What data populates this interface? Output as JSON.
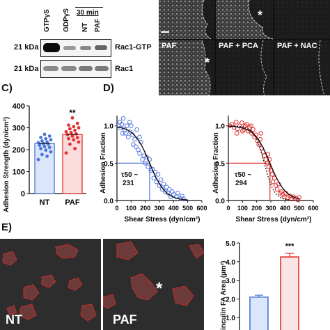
{
  "panelB": {
    "lane_labels": [
      "GTPγS",
      "GDPγS",
      "NT",
      "PAF"
    ],
    "treatment_header": "30 min",
    "rows": [
      {
        "kda": "21 kDa",
        "name": "Rac1-GTP"
      },
      {
        "kda": "21 kDa",
        "name": "Rac1"
      }
    ]
  },
  "micro_top": {
    "panels": [
      "PAF",
      "PAF + PCA",
      "PAF + NAC"
    ],
    "asterisk": "*"
  },
  "panelC": {
    "label": "C)",
    "ylabel": "Adhesion Strength (dyn/cm²)",
    "significance": "**"
  },
  "panelD": {
    "label": "D)",
    "ylabel": "Adhesion Fraction",
    "xlabel": "Shear Stress (dyn/cm²)",
    "left_tau": "τ50 ~",
    "left_tau_val": "231",
    "right_tau": "τ50 ~",
    "right_tau_val": "294"
  },
  "panelE": {
    "label": "E)",
    "images": [
      "NT",
      "PAF"
    ],
    "asterisk": "*",
    "bar_ylabel": "inculin FA Area (µm²)",
    "significance": "***"
  },
  "chart_data": [
    {
      "type": "bar",
      "categories": [
        "NT",
        "PAF"
      ],
      "values": [
        228,
        270
      ],
      "ylim": [
        0,
        400
      ],
      "yticks": [
        0,
        100,
        200,
        300,
        400
      ],
      "colors": [
        "#4a76d8",
        "#e23030"
      ],
      "ylabel": "Adhesion Strength (dyn/cm²)",
      "points": {
        "NT": [
          155,
          170,
          178,
          190,
          198,
          205,
          210,
          215,
          220,
          225,
          228,
          232,
          235,
          240,
          245,
          250,
          256,
          262,
          270
        ],
        "PAF": [
          185,
          205,
          225,
          235,
          245,
          250,
          255,
          262,
          268,
          272,
          278,
          282,
          288,
          295,
          300,
          305,
          312,
          320,
          345
        ]
      }
    },
    {
      "type": "scatter",
      "series": [
        {
          "values": [
            [
              10,
              1.0
            ],
            [
              20,
              1.05
            ],
            [
              25,
              0.97
            ],
            [
              35,
              1.02
            ],
            [
              45,
              1.1
            ],
            [
              55,
              0.95
            ],
            [
              60,
              0.9
            ],
            [
              70,
              1.0
            ],
            [
              80,
              0.85
            ],
            [
              90,
              1.05
            ],
            [
              95,
              0.92
            ],
            [
              110,
              0.88
            ],
            [
              115,
              0.75
            ],
            [
              125,
              0.82
            ],
            [
              135,
              0.72
            ],
            [
              140,
              0.95
            ],
            [
              150,
              0.68
            ],
            [
              160,
              0.63
            ],
            [
              170,
              0.78
            ],
            [
              180,
              0.55
            ],
            [
              190,
              0.6
            ],
            [
              200,
              0.5
            ],
            [
              210,
              0.58
            ],
            [
              220,
              0.45
            ],
            [
              230,
              0.55
            ],
            [
              240,
              0.4
            ],
            [
              250,
              0.42
            ],
            [
              260,
              0.3
            ],
            [
              270,
              0.38
            ],
            [
              280,
              0.25
            ],
            [
              290,
              0.35
            ],
            [
              300,
              0.2
            ],
            [
              310,
              0.28
            ],
            [
              320,
              0.15
            ],
            [
              330,
              0.22
            ],
            [
              340,
              0.12
            ],
            [
              350,
              0.18
            ],
            [
              360,
              0.1
            ],
            [
              370,
              0.15
            ],
            [
              380,
              0.05
            ],
            [
              390,
              0.12
            ],
            [
              400,
              0.08
            ],
            [
              420,
              0.05
            ],
            [
              430,
              0.1
            ],
            [
              450,
              0.03
            ],
            [
              460,
              0.06
            ],
            [
              470,
              0.02
            ],
            [
              40,
              0.9
            ],
            [
              100,
              1.0
            ],
            [
              160,
              0.85
            ]
          ]
        }
      ],
      "fit": "sigmoid",
      "tau50": 231,
      "xlim": [
        0,
        600
      ],
      "ylim": [
        0,
        1.1
      ],
      "xticks": [
        0,
        100,
        200,
        300,
        400,
        500,
        600
      ],
      "yticks": [
        0.0,
        0.5,
        1.0
      ],
      "xlabel": "Shear Stress (dyn/cm²)",
      "ylabel": "Adhesion Fraction"
    },
    {
      "type": "scatter",
      "series": [
        {
          "values": [
            [
              10,
              1.0
            ],
            [
              25,
              1.02
            ],
            [
              40,
              0.98
            ],
            [
              55,
              1.05
            ],
            [
              65,
              0.96
            ],
            [
              80,
              1.0
            ],
            [
              95,
              1.04
            ],
            [
              110,
              0.95
            ],
            [
              120,
              1.0
            ],
            [
              130,
              1.02
            ],
            [
              140,
              0.93
            ],
            [
              150,
              0.98
            ],
            [
              165,
              0.9
            ],
            [
              175,
              0.95
            ],
            [
              185,
              0.85
            ],
            [
              195,
              0.88
            ],
            [
              205,
              0.8
            ],
            [
              215,
              0.75
            ],
            [
              225,
              0.82
            ],
            [
              235,
              0.7
            ],
            [
              245,
              0.65
            ],
            [
              255,
              0.6
            ],
            [
              265,
              0.55
            ],
            [
              275,
              0.5
            ],
            [
              285,
              0.45
            ],
            [
              290,
              0.55
            ],
            [
              300,
              0.4
            ],
            [
              310,
              0.35
            ],
            [
              315,
              0.25
            ],
            [
              325,
              0.3
            ],
            [
              335,
              0.2
            ],
            [
              345,
              0.15
            ],
            [
              355,
              0.22
            ],
            [
              365,
              0.1
            ],
            [
              375,
              0.12
            ],
            [
              385,
              0.08
            ],
            [
              395,
              0.05
            ],
            [
              405,
              0.1
            ],
            [
              420,
              0.04
            ],
            [
              435,
              0.06
            ],
            [
              445,
              0.02
            ],
            [
              460,
              0.05
            ],
            [
              475,
              0.03
            ],
            [
              490,
              0.01
            ],
            [
              500,
              0.04
            ],
            [
              60,
              0.9
            ],
            [
              100,
              0.93
            ],
            [
              160,
              1.0
            ],
            [
              230,
              0.9
            ],
            [
              280,
              0.62
            ]
          ]
        }
      ],
      "fit": "sigmoid",
      "tau50": 294,
      "xlim": [
        0,
        600
      ],
      "ylim": [
        0,
        1.1
      ],
      "xticks": [
        0,
        100,
        200,
        300,
        400,
        500,
        600
      ],
      "yticks": [
        0.0,
        0.5,
        1.0
      ],
      "xlabel": "Shear Stress (dyn/cm²)",
      "ylabel": "Adhesion Fraction"
    },
    {
      "type": "bar",
      "categories": [
        "NT",
        "PAF"
      ],
      "values": [
        2.1,
        4.25
      ],
      "errors": [
        0.1,
        0.2
      ],
      "ylim": [
        0,
        5
      ],
      "yticks": [
        1.0,
        2.0,
        3.0,
        4.0,
        5.0
      ],
      "colors": [
        "#4a76d8",
        "#e23030"
      ],
      "ylabel": "inculin FA Area (µm²)"
    }
  ]
}
